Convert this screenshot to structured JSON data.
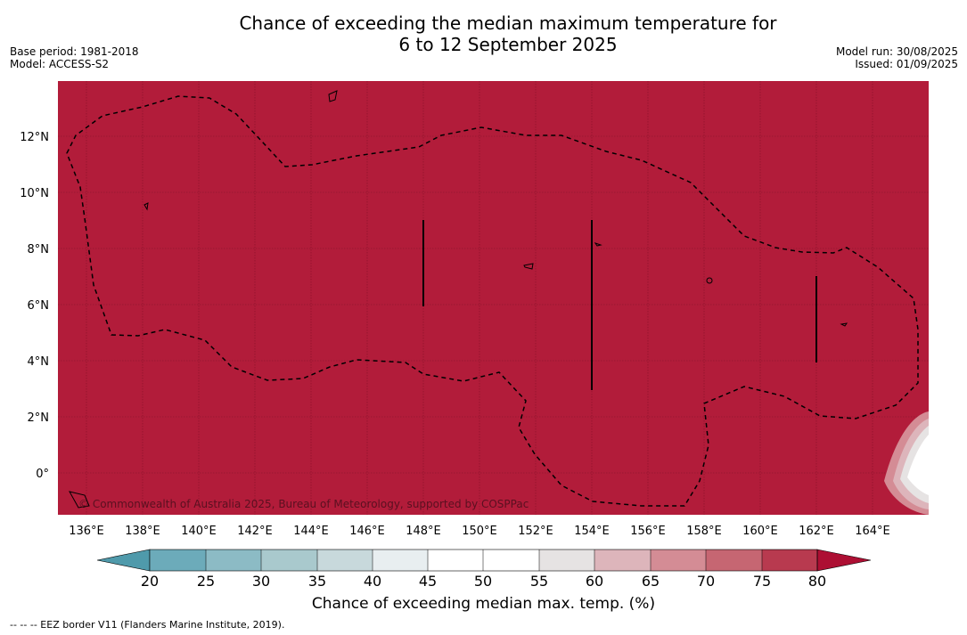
{
  "header": {
    "title_line1": "Chance of exceeding the median maximum temperature for",
    "title_line2": "6 to 12 September 2025",
    "base_period": "Base period: 1981-2018",
    "model": "Model: ACCESS-S2",
    "model_run": "Model run: 30/08/2025",
    "issued": "Issued: 01/09/2025"
  },
  "map": {
    "background_color": "#b21c3a",
    "lon_ticks": [
      "136°E",
      "138°E",
      "140°E",
      "142°E",
      "144°E",
      "146°E",
      "148°E",
      "150°E",
      "152°E",
      "154°E",
      "156°E",
      "158°E",
      "160°E",
      "162°E",
      "164°E"
    ],
    "lat_ticks": [
      "12°N",
      "10°N",
      "8°N",
      "6°N",
      "4°N",
      "2°N",
      "0°"
    ],
    "copyright": "© Commonwealth of Australia 2025, Bureau of Meteorology, supported by COSPPac"
  },
  "colorbar": {
    "label": "Chance of exceeding median max. temp. (%)",
    "ticks": [
      "20",
      "25",
      "30",
      "35",
      "40",
      "45",
      "50",
      "55",
      "60",
      "65",
      "70",
      "75",
      "80"
    ],
    "colors": [
      "#4f9aab",
      "#6cabba",
      "#8cbbc5",
      "#a9c9cd",
      "#c8d9dc",
      "#e8eef0",
      "#ffffff",
      "#ffffff",
      "#e6e3e3",
      "#ddb5bb",
      "#d48c95",
      "#c66672",
      "#b83a4f",
      "#ad0f33"
    ]
  },
  "footnote": "--  --  -- EEZ border V11 (Flanders Marine Institute, 2019)."
}
